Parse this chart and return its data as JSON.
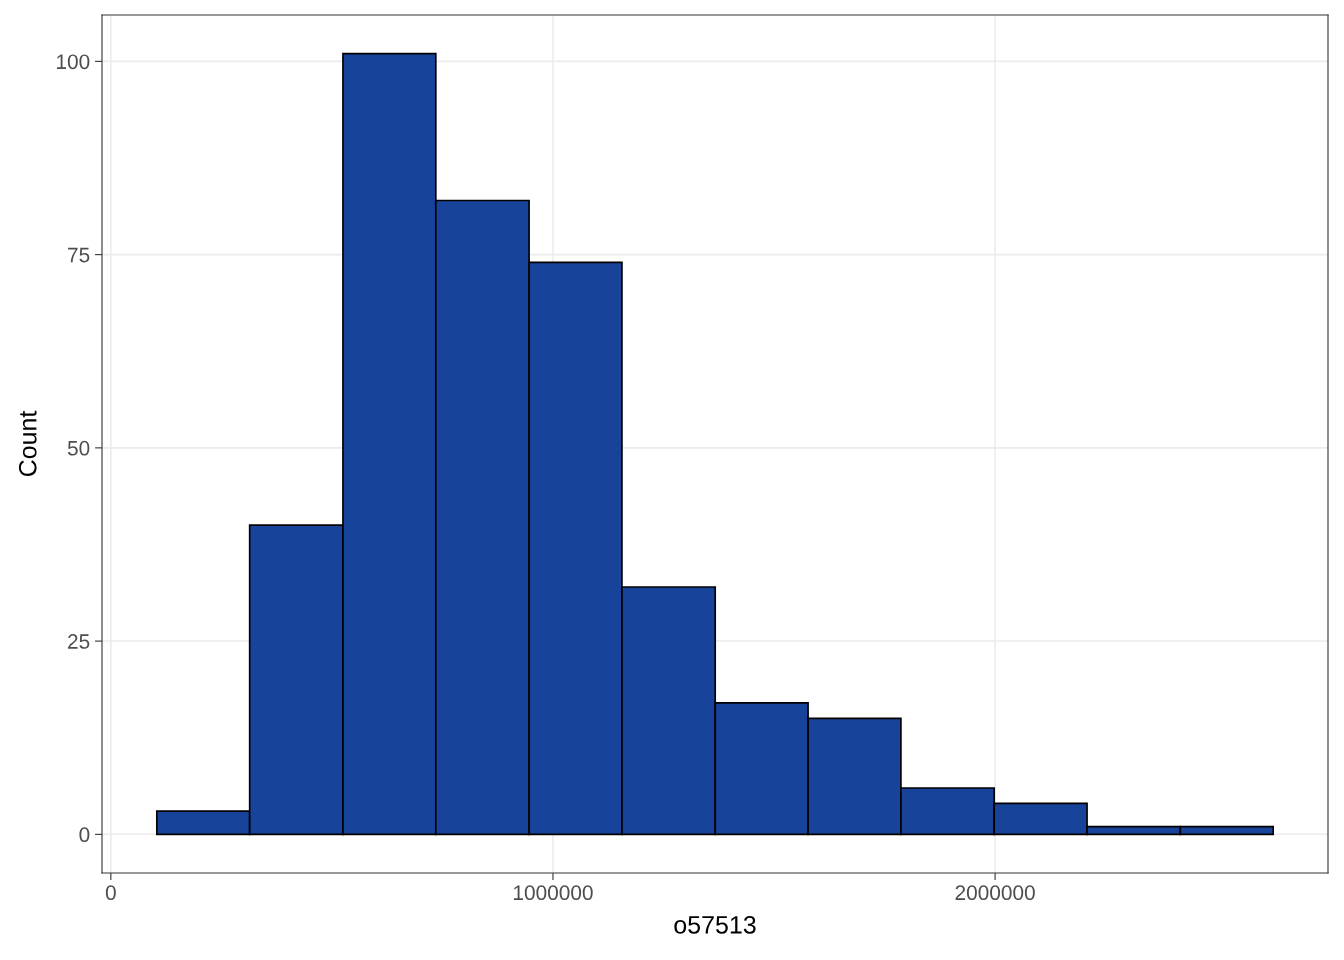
{
  "chart_data": {
    "type": "histogram",
    "xlabel": "o57513",
    "ylabel": "Count",
    "bins": [
      104000,
      314000,
      525000,
      735000,
      946000,
      1156000,
      1367000,
      1577000,
      1787000,
      1998000,
      2208000,
      2419000,
      2629000
    ],
    "values": [
      3,
      40,
      101,
      82,
      74,
      32,
      17,
      15,
      6,
      4,
      1,
      1
    ],
    "color": "#18439a",
    "xlim": [
      -20000,
      2753000
    ],
    "xticks": [
      0,
      1000000,
      2000000
    ],
    "ylim": [
      -5,
      106
    ],
    "yticks": [
      0,
      25,
      50,
      75,
      100
    ],
    "grid": true,
    "legend": false
  }
}
